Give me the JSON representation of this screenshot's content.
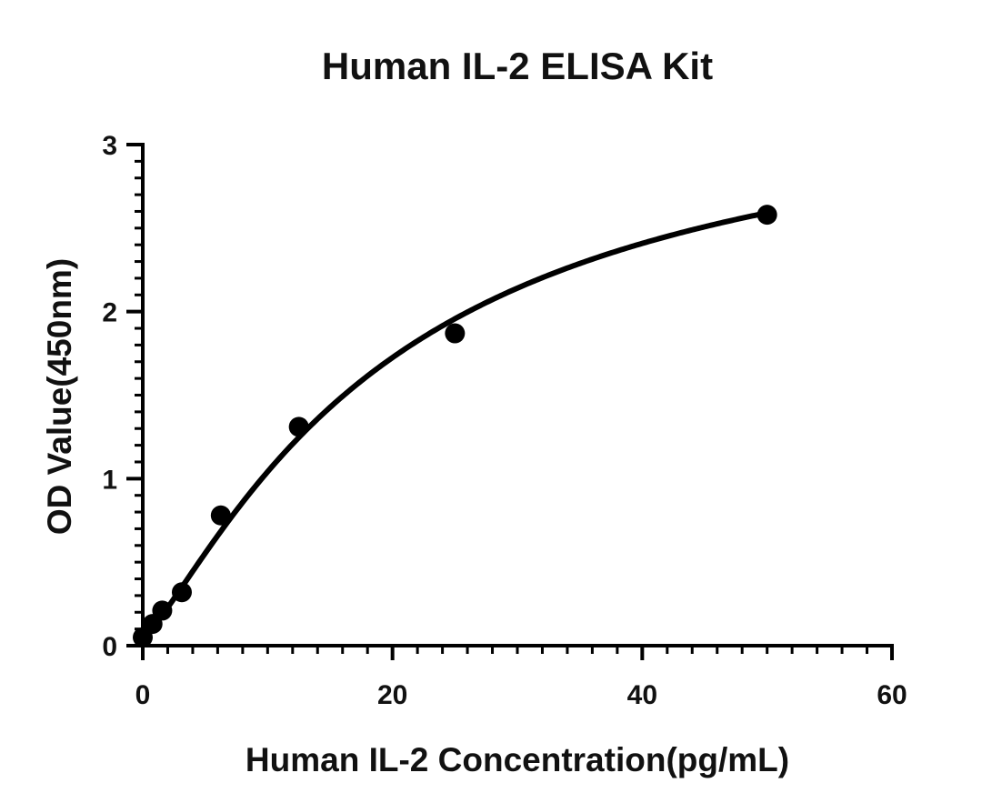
{
  "chart_data": {
    "type": "scatter",
    "title": "Human IL-2 ELISA Kit",
    "xlabel": "Human IL-2 Concentration(pg/mL)",
    "ylabel": "OD Value(450nm)",
    "xlim": [
      0,
      60
    ],
    "ylim": [
      0,
      3
    ],
    "x_ticks": [
      0,
      20,
      40,
      60
    ],
    "x_tick_labels": [
      "0",
      "20",
      "40",
      "60"
    ],
    "x_minor_step": 2,
    "y_ticks": [
      0,
      1,
      2,
      3
    ],
    "y_tick_labels": [
      "0",
      "1",
      "2",
      "3"
    ],
    "y_minor_step": 0.1,
    "grid": false,
    "legend": "none",
    "series": [
      {
        "x": [
          0,
          0.78,
          1.56,
          3.13,
          6.25,
          12.5,
          25,
          50
        ],
        "y": [
          0.05,
          0.13,
          0.21,
          0.32,
          0.78,
          1.31,
          1.87,
          2.58
        ]
      }
    ],
    "fit_curve": {
      "model": "four-parameter logistic",
      "a": 0.05,
      "b": 1.25,
      "c": 20,
      "d": 3.4
    },
    "colors": {
      "marker": "#000000",
      "curve": "#000000",
      "axis": "#000000",
      "text": "#111111"
    }
  }
}
